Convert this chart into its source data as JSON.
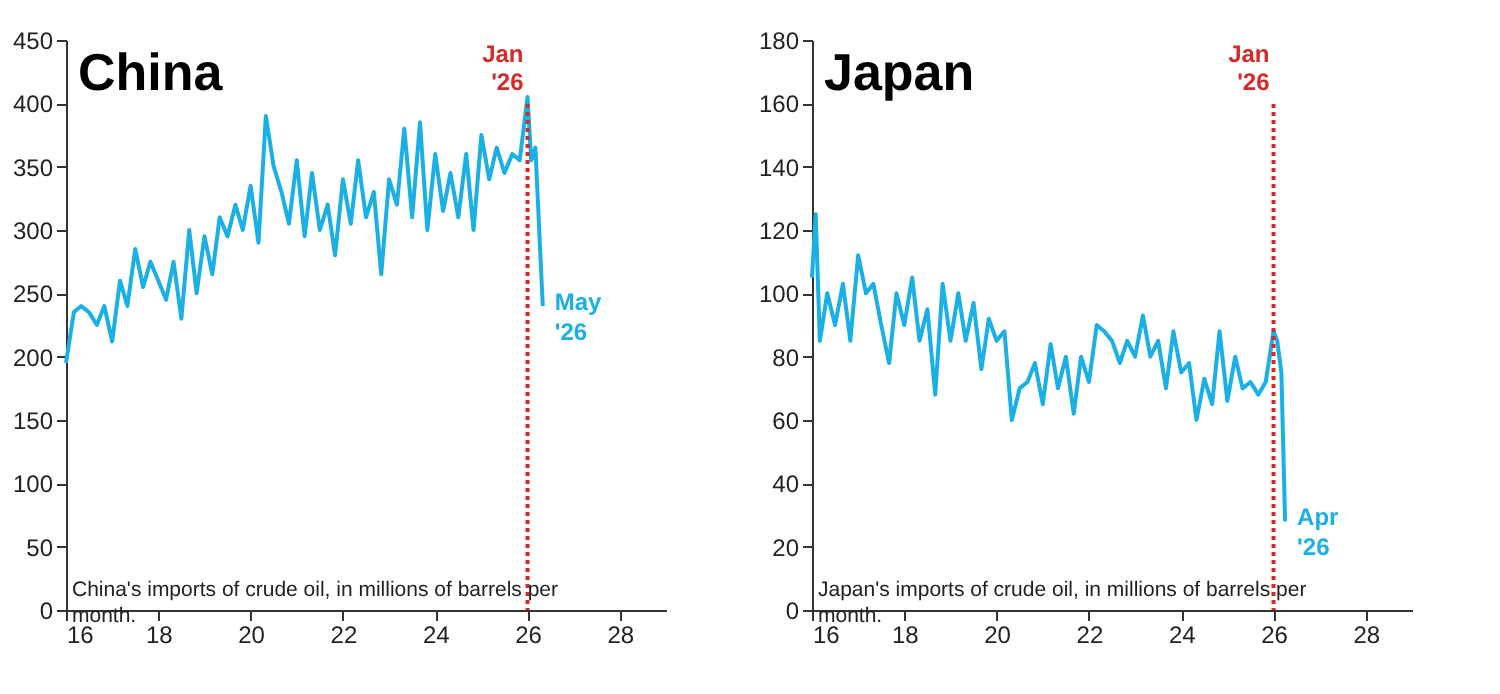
{
  "chart_data": [
    {
      "type": "line",
      "title": "China",
      "xlim": [
        16,
        29
      ],
      "xticks": [
        16,
        18,
        20,
        22,
        24,
        26,
        28
      ],
      "ylim": [
        0,
        450
      ],
      "yticks": [
        0,
        50,
        100,
        150,
        200,
        250,
        300,
        350,
        400,
        450
      ],
      "grid": false,
      "line_style": "solid",
      "x": [
        16.0,
        16.17,
        16.33,
        16.5,
        16.67,
        16.83,
        17.0,
        17.17,
        17.33,
        17.5,
        17.67,
        17.83,
        18.0,
        18.17,
        18.33,
        18.5,
        18.67,
        18.83,
        19.0,
        19.17,
        19.33,
        19.5,
        19.67,
        19.83,
        20.0,
        20.17,
        20.33,
        20.5,
        20.67,
        20.83,
        21.0,
        21.17,
        21.33,
        21.5,
        21.67,
        21.83,
        22.0,
        22.17,
        22.33,
        22.5,
        22.67,
        22.83,
        23.0,
        23.17,
        23.33,
        23.5,
        23.67,
        23.83,
        24.0,
        24.17,
        24.33,
        24.5,
        24.67,
        24.83,
        25.0,
        25.17,
        25.33,
        25.5,
        25.67,
        25.83,
        26.0,
        26.08,
        26.17,
        26.33
      ],
      "series": [
        {
          "color": "#1ab0e6",
          "values": [
            195,
            235,
            240,
            235,
            225,
            240,
            212,
            260,
            240,
            285,
            255,
            275,
            260,
            245,
            275,
            230,
            300,
            250,
            295,
            265,
            310,
            295,
            320,
            300,
            335,
            290,
            390,
            350,
            330,
            305,
            355,
            295,
            345,
            300,
            320,
            280,
            340,
            305,
            355,
            310,
            330,
            265,
            340,
            320,
            380,
            310,
            385,
            300,
            360,
            315,
            345,
            310,
            360,
            300,
            375,
            340,
            365,
            345,
            360,
            355,
            405,
            355,
            365,
            240
          ]
        }
      ],
      "ref_lines": [
        {
          "axis": "x",
          "value": 26,
          "label": "Jan '26",
          "color": "#d42a2a",
          "line_style": "dotted"
        }
      ],
      "annotations": [
        "China's imports of crude oil, in millions of barrels per month.",
        {
          "text": "May '26",
          "x": 26.33,
          "y": 240
        }
      ]
    },
    {
      "type": "line",
      "title": "Japan",
      "xlim": [
        16,
        29
      ],
      "xticks": [
        16,
        18,
        20,
        22,
        24,
        26,
        28
      ],
      "ylim": [
        0,
        180
      ],
      "yticks": [
        0,
        20,
        40,
        60,
        80,
        100,
        120,
        140,
        160,
        180
      ],
      "grid": false,
      "line_style": "solid",
      "x": [
        16.0,
        16.08,
        16.17,
        16.33,
        16.5,
        16.67,
        16.83,
        17.0,
        17.17,
        17.33,
        17.5,
        17.67,
        17.83,
        18.0,
        18.17,
        18.33,
        18.5,
        18.67,
        18.83,
        19.0,
        19.17,
        19.33,
        19.5,
        19.67,
        19.83,
        20.0,
        20.17,
        20.33,
        20.5,
        20.67,
        20.83,
        21.0,
        21.17,
        21.33,
        21.5,
        21.67,
        21.83,
        22.0,
        22.17,
        22.33,
        22.5,
        22.67,
        22.83,
        23.0,
        23.17,
        23.33,
        23.5,
        23.67,
        23.83,
        24.0,
        24.17,
        24.33,
        24.5,
        24.67,
        24.83,
        25.0,
        25.17,
        25.33,
        25.5,
        25.67,
        25.83,
        26.0,
        26.08,
        26.17,
        26.25
      ],
      "series": [
        {
          "color": "#1ab0e6",
          "values": [
            105,
            125,
            85,
            100,
            90,
            103,
            85,
            112,
            100,
            103,
            90,
            78,
            100,
            90,
            105,
            85,
            95,
            68,
            103,
            85,
            100,
            85,
            97,
            76,
            92,
            85,
            88,
            60,
            70,
            72,
            78,
            65,
            84,
            70,
            80,
            62,
            80,
            72,
            90,
            88,
            85,
            78,
            85,
            80,
            93,
            80,
            85,
            70,
            88,
            75,
            78,
            60,
            73,
            65,
            88,
            66,
            80,
            70,
            72,
            68,
            72,
            88,
            85,
            75,
            28
          ]
        }
      ],
      "ref_lines": [
        {
          "axis": "x",
          "value": 26,
          "label": "Jan '26",
          "color": "#d42a2a",
          "line_style": "dotted"
        }
      ],
      "annotations": [
        "Japan's imports of crude oil, in millions of barrels per month.",
        {
          "text": "Apr '26",
          "x": 26.25,
          "y": 28
        }
      ]
    }
  ]
}
